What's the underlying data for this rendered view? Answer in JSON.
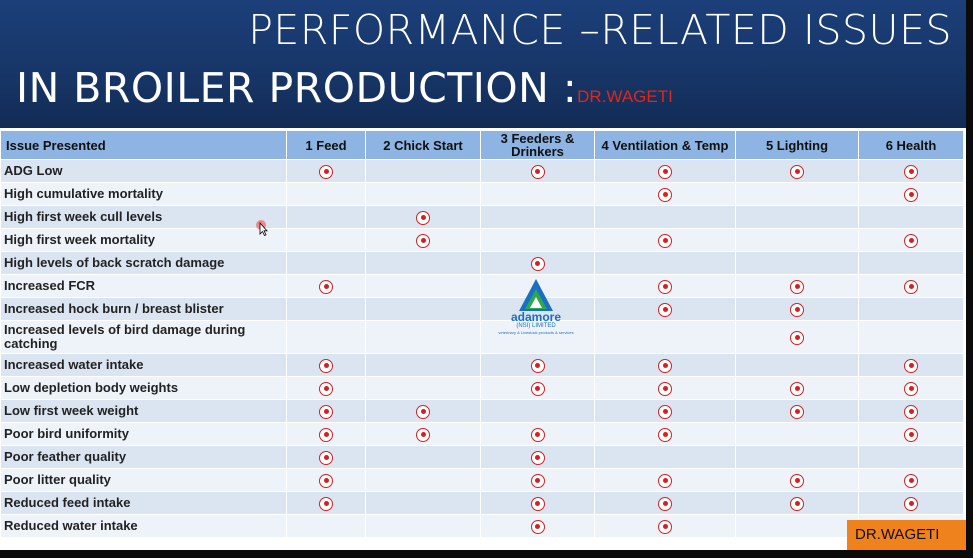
{
  "slide": {
    "title_line1": "PERFORMANCE –RELATED ISSUES",
    "title_line2": "IN BROILER PRODUCTION :",
    "title_author": "DR.WAGETI"
  },
  "table": {
    "headers": [
      "Issue Presented",
      "1 Feed",
      "2 Chick Start",
      "3 Feeders & Drinkers",
      "4 Ventilation & Temp",
      "5 Lighting",
      "6 Health"
    ],
    "rows": [
      {
        "issue": "ADG Low",
        "marks": [
          1,
          0,
          1,
          1,
          1,
          1
        ]
      },
      {
        "issue": "High cumulative mortality",
        "marks": [
          0,
          0,
          0,
          1,
          0,
          1
        ]
      },
      {
        "issue": "High first week cull levels",
        "marks": [
          0,
          1,
          0,
          0,
          0,
          0
        ]
      },
      {
        "issue": "High first week mortality",
        "marks": [
          0,
          1,
          0,
          1,
          0,
          1
        ]
      },
      {
        "issue": "High levels of back scratch damage",
        "marks": [
          0,
          0,
          1,
          0,
          0,
          0
        ]
      },
      {
        "issue": "Increased FCR",
        "marks": [
          1,
          0,
          0,
          1,
          1,
          1
        ]
      },
      {
        "issue": "Increased hock burn / breast blister",
        "marks": [
          0,
          0,
          0,
          1,
          1,
          0
        ]
      },
      {
        "issue": "Increased levels of bird damage during catching",
        "marks": [
          0,
          0,
          0,
          0,
          1,
          0
        ]
      },
      {
        "issue": "Increased water intake",
        "marks": [
          1,
          0,
          1,
          1,
          0,
          1
        ]
      },
      {
        "issue": "Low depletion body weights",
        "marks": [
          1,
          0,
          1,
          1,
          1,
          1
        ]
      },
      {
        "issue": "Low first week weight",
        "marks": [
          1,
          1,
          0,
          1,
          1,
          1
        ]
      },
      {
        "issue": "Poor bird uniformity",
        "marks": [
          1,
          1,
          1,
          1,
          0,
          1
        ]
      },
      {
        "issue": "Poor feather quality",
        "marks": [
          1,
          0,
          1,
          0,
          0,
          0
        ]
      },
      {
        "issue": "Poor litter quality",
        "marks": [
          1,
          0,
          1,
          1,
          1,
          1
        ]
      },
      {
        "issue": "Reduced feed intake",
        "marks": [
          1,
          0,
          1,
          1,
          1,
          1
        ]
      },
      {
        "issue": "Reduced water intake",
        "marks": [
          0,
          0,
          1,
          1,
          0,
          0
        ]
      }
    ]
  },
  "logo": {
    "name": "adamore",
    "subtitle": "(NSI) LIMITED",
    "tagline": "veterinary & Livestock products & services",
    "colors": {
      "blue": "#1a6fc4",
      "green": "#2ea84a"
    }
  },
  "watermark": {
    "text": "DR.WAGETI"
  },
  "icons": {
    "check_mark": "circle-dot-icon",
    "pointer": "mouse-cursor-icon"
  },
  "colors": {
    "header_bg": "#173668",
    "table_header_bg": "#8db4e2",
    "row_odd": "#dbe5f1",
    "row_even": "#eef3f9",
    "mark": "#d42020",
    "watermark_bg": "#f0821e",
    "author_red": "#e0261a"
  }
}
